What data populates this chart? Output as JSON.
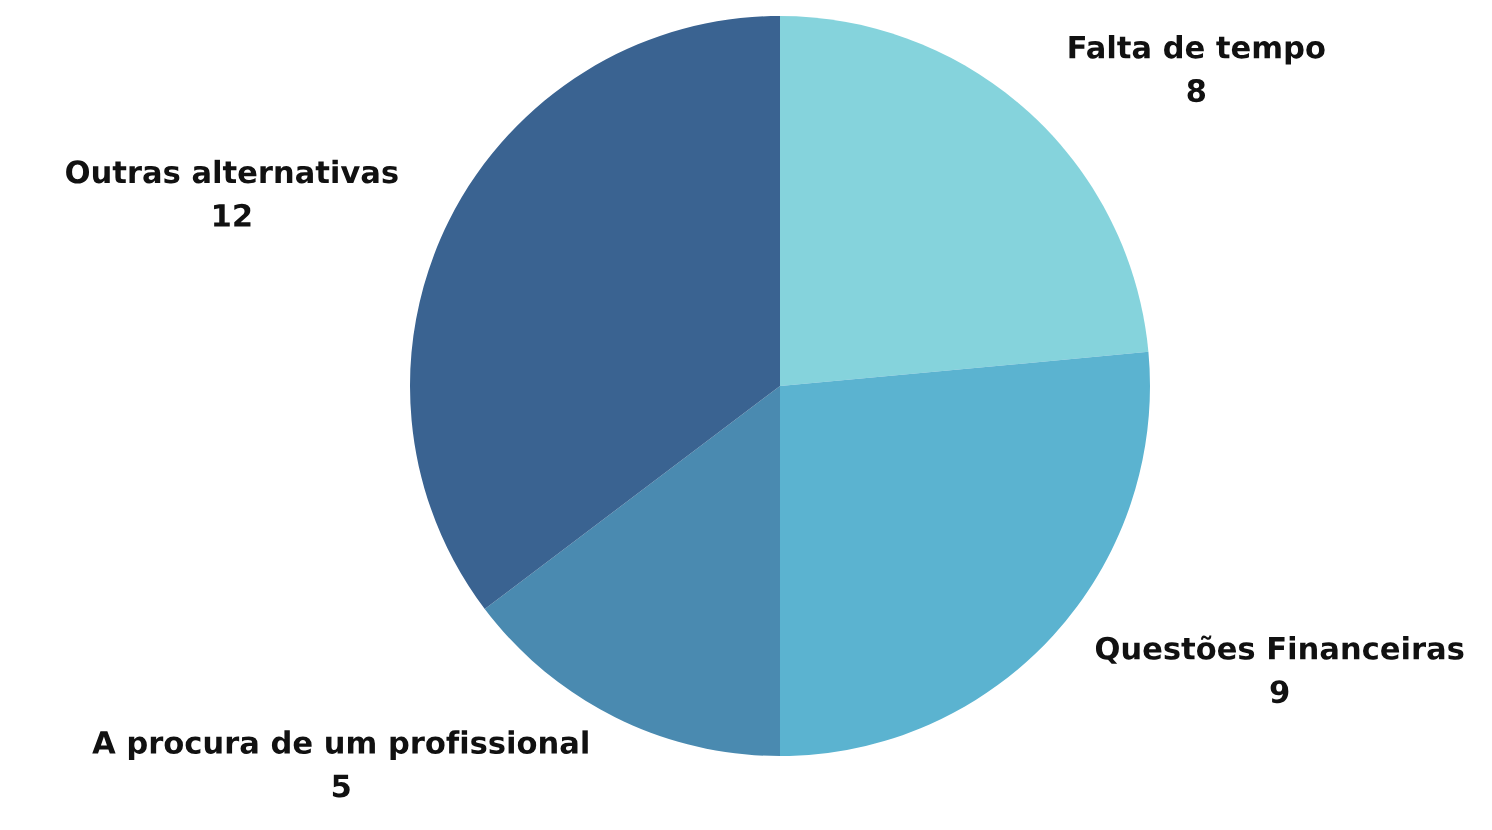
{
  "chart_data": {
    "type": "pie",
    "categories": [
      "Falta de tempo",
      "Questões Financeiras",
      "A procura de um profissional",
      "Outras alternativas"
    ],
    "values": [
      8,
      9,
      5,
      12
    ],
    "colors": [
      "#85d3dc",
      "#5bb3d0",
      "#4a8ab0",
      "#3a6391"
    ],
    "data_labels": true,
    "legend": false
  }
}
